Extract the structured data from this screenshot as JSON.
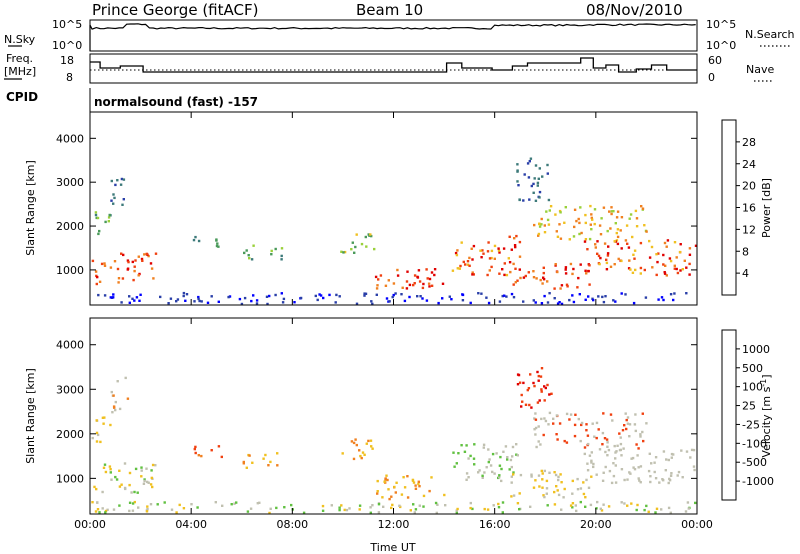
{
  "header": {
    "title": "Prince George (fitACF)",
    "beam": "Beam 10",
    "date": "08/Nov/2010"
  },
  "top_panels": {
    "nsky_label": "N.Sky",
    "nsky_ticks": [
      "10^5",
      "10^0"
    ],
    "nsearch_label": "N.Search",
    "nsearch_ticks": [
      "10^5",
      "10^0"
    ],
    "freq_label_1": "Freq.",
    "freq_label_2": "[MHz]",
    "freq_ticks": [
      "18",
      "8"
    ],
    "nave_label": "Nave",
    "nave_ticks": [
      "60",
      "0"
    ],
    "cpid_label": "CPID",
    "cpid_value": "normalsound (fast) -157"
  },
  "colors": {
    "power_scale": [
      "#0000ff",
      "#2a3fa8",
      "#3d7a7a",
      "#4a9a5a",
      "#9ad03a",
      "#f0c020",
      "#f08020",
      "#f04010",
      "#e00000"
    ],
    "velocity_scale": [
      "#2030b0",
      "#2f5cb0",
      "#3a8a5a",
      "#60c040",
      "#c0c0b0",
      "#f0c020",
      "#f08020",
      "#f04010",
      "#e00000"
    ]
  },
  "chart_data": [
    {
      "type": "heatmap",
      "title": "Power",
      "xlabel": "",
      "ylabel": "Slant Range [km]",
      "y_ticks": [
        "1000",
        "2000",
        "3000",
        "4000"
      ],
      "ylim": [
        200,
        4600
      ],
      "x_ticks": [
        "00:00",
        "04:00",
        "08:00",
        "12:00",
        "16:00",
        "20:00",
        "00:00"
      ],
      "xlim_hours": [
        0,
        24
      ],
      "colorbar": {
        "label": "Power [dB]",
        "ticks": [
          "28",
          "24",
          "20",
          "16",
          "12",
          "8",
          "4"
        ],
        "range": [
          0,
          30
        ]
      }
    },
    {
      "type": "heatmap",
      "title": "Velocity",
      "xlabel": "Time UT",
      "ylabel": "Slant Range [km]",
      "y_ticks": [
        "1000",
        "2000",
        "3000",
        "4000"
      ],
      "ylim": [
        200,
        4600
      ],
      "x_ticks": [
        "00:00",
        "04:00",
        "08:00",
        "12:00",
        "16:00",
        "20:00",
        "00:00"
      ],
      "xlim_hours": [
        0,
        24
      ],
      "colorbar": {
        "label": "Velocity [m s",
        "label_sup": "-1",
        "label_end": "]",
        "ticks": [
          "1000",
          "500",
          "100",
          "25",
          "-25",
          "-100",
          "-500",
          "-1000"
        ]
      }
    }
  ]
}
